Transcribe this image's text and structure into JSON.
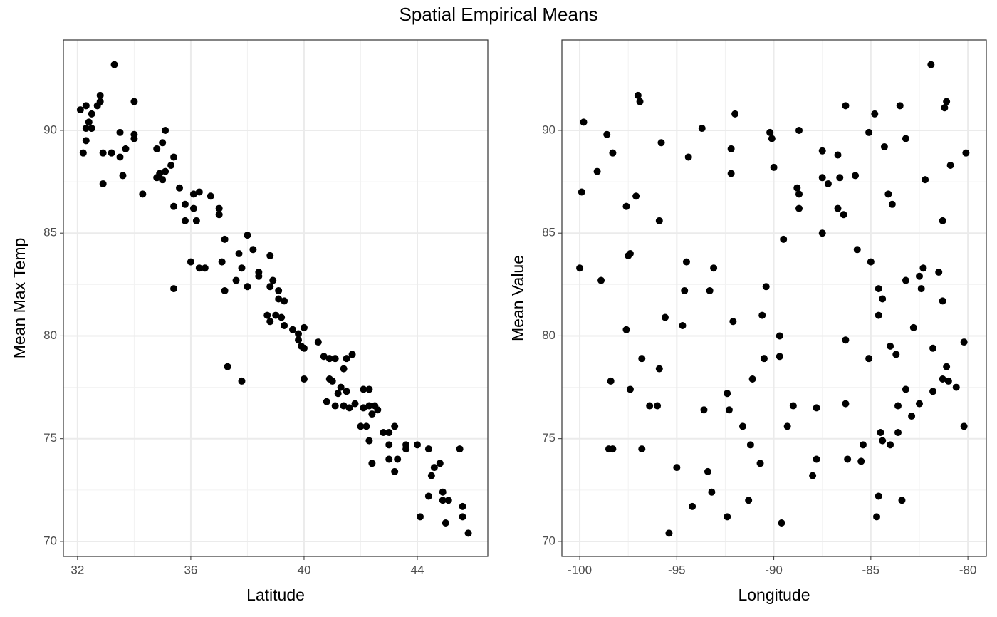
{
  "title": "Spatial Empirical Means",
  "chart_data": [
    {
      "type": "scatter",
      "x_label": "Latitude",
      "y_label": "Mean Max Temp",
      "color": "#000000",
      "grid": true,
      "xlim": [
        31.5,
        46.49
      ],
      "ylim": [
        69.27,
        94.4
      ],
      "xticks": [
        32,
        36,
        40,
        44
      ],
      "yticks": [
        70,
        75,
        80,
        85,
        90
      ],
      "x": [
        32.1,
        32.3,
        32.2,
        32.3,
        32.3,
        32.4,
        32.5,
        32.5,
        32.7,
        32.8,
        32.8,
        32.9,
        32.9,
        33.2,
        33.3,
        33.5,
        33.5,
        33.6,
        33.7,
        34.0,
        34.0,
        34.0,
        34.3,
        34.8,
        34.8,
        34.9,
        35.0,
        35.0,
        35.1,
        35.1,
        35.3,
        35.4,
        35.4,
        35.4,
        35.6,
        35.8,
        35.8,
        36.0,
        36.1,
        36.1,
        36.2,
        36.3,
        36.3,
        36.5,
        36.7,
        37.0,
        37.0,
        37.1,
        37.2,
        37.2,
        37.3,
        37.6,
        37.7,
        37.8,
        37.8,
        38.0,
        38.0,
        38.2,
        38.4,
        38.4,
        38.7,
        38.8,
        38.8,
        38.8,
        38.9,
        39.0,
        39.1,
        39.1,
        39.2,
        39.3,
        39.3,
        39.6,
        39.8,
        39.8,
        39.9,
        40.0,
        40.0,
        40.0,
        40.5,
        40.7,
        40.8,
        40.9,
        40.9,
        41.0,
        41.1,
        41.1,
        41.2,
        41.3,
        41.4,
        41.4,
        41.5,
        41.5,
        41.6,
        41.7,
        41.8,
        42.0,
        42.1,
        42.1,
        42.2,
        42.3,
        42.3,
        42.3,
        42.4,
        42.4,
        42.5,
        42.6,
        42.8,
        43.0,
        43.0,
        43.0,
        43.2,
        43.2,
        43.3,
        43.6,
        43.6,
        44.0,
        44.1,
        44.4,
        44.4,
        44.5,
        44.6,
        44.8,
        44.9,
        44.9,
        45.0,
        45.1,
        45.5,
        45.6,
        45.6,
        45.8
      ],
      "values": [
        91.0,
        91.2,
        88.9,
        89.5,
        90.1,
        90.4,
        90.8,
        90.1,
        91.2,
        91.7,
        91.4,
        88.9,
        87.4,
        88.9,
        93.2,
        89.9,
        88.7,
        87.8,
        89.1,
        91.4,
        89.8,
        89.6,
        86.9,
        89.1,
        87.7,
        87.9,
        89.4,
        87.6,
        88.0,
        90.0,
        88.3,
        88.7,
        86.3,
        82.3,
        87.2,
        85.6,
        86.4,
        83.6,
        86.9,
        86.2,
        85.6,
        83.3,
        87.0,
        83.3,
        86.8,
        85.9,
        86.2,
        83.6,
        84.7,
        82.2,
        78.5,
        82.7,
        84.0,
        83.3,
        77.8,
        84.9,
        82.4,
        84.2,
        83.1,
        82.9,
        81.0,
        83.9,
        82.4,
        80.7,
        82.7,
        81.0,
        82.2,
        81.8,
        80.9,
        80.5,
        81.7,
        80.3,
        80.1,
        79.8,
        79.5,
        80.4,
        79.4,
        77.9,
        79.7,
        79.0,
        76.8,
        78.9,
        77.9,
        77.8,
        76.6,
        78.9,
        77.2,
        77.5,
        78.4,
        76.6,
        77.3,
        78.9,
        76.5,
        79.1,
        76.7,
        75.6,
        77.4,
        76.5,
        75.6,
        74.9,
        77.4,
        76.6,
        76.2,
        73.8,
        76.6,
        76.4,
        75.3,
        74.7,
        74.0,
        75.3,
        75.6,
        73.4,
        74.0,
        74.7,
        74.5,
        74.7,
        71.2,
        74.5,
        72.2,
        73.2,
        73.6,
        73.8,
        72.4,
        72.0,
        70.9,
        72.0,
        74.5,
        71.7,
        71.2,
        70.4
      ]
    },
    {
      "type": "scatter",
      "x_label": "Longitude",
      "y_label": "Mean Value",
      "color": "#000000",
      "grid": true,
      "xlim": [
        -100.92,
        -79.05
      ],
      "ylim": [
        69.27,
        94.4
      ],
      "xticks": [
        -100,
        -95,
        -90,
        -85,
        -80
      ],
      "yticks": [
        70,
        75,
        80,
        85,
        90
      ],
      "x": [
        -100.0,
        -99.9,
        -99.8,
        -99.1,
        -98.9,
        -98.6,
        -98.5,
        -98.4,
        -98.3,
        -98.3,
        -97.6,
        -97.6,
        -97.5,
        -97.4,
        -97.4,
        -97.1,
        -97.0,
        -96.9,
        -96.8,
        -96.8,
        -96.4,
        -96.0,
        -95.9,
        -95.9,
        -95.8,
        -95.6,
        -95.4,
        -95.0,
        -94.7,
        -94.6,
        -94.5,
        -94.4,
        -94.2,
        -93.7,
        -93.6,
        -93.4,
        -93.3,
        -93.2,
        -93.1,
        -92.4,
        -92.4,
        -92.3,
        -92.2,
        -92.2,
        -92.1,
        -92.0,
        -91.6,
        -91.3,
        -91.2,
        -91.1,
        -90.7,
        -90.6,
        -90.5,
        -90.4,
        -90.2,
        -90.1,
        -90.0,
        -89.7,
        -89.7,
        -89.6,
        -89.5,
        -89.3,
        -89.0,
        -88.8,
        -88.7,
        -88.7,
        -88.7,
        -88.0,
        -87.8,
        -87.8,
        -87.5,
        -87.5,
        -87.5,
        -87.2,
        -86.7,
        -86.7,
        -86.6,
        -86.4,
        -86.3,
        -86.3,
        -86.3,
        -86.2,
        -85.8,
        -85.7,
        -85.5,
        -85.4,
        -85.1,
        -85.1,
        -85.0,
        -84.8,
        -84.7,
        -84.6,
        -84.6,
        -84.6,
        -84.5,
        -84.4,
        -84.4,
        -84.3,
        -84.1,
        -84.0,
        -84.0,
        -83.9,
        -83.7,
        -83.6,
        -83.6,
        -83.5,
        -83.4,
        -83.2,
        -83.2,
        -83.2,
        -82.9,
        -82.8,
        -82.5,
        -82.5,
        -82.4,
        -82.3,
        -82.2,
        -81.9,
        -81.8,
        -81.8,
        -81.5,
        -81.3,
        -81.3,
        -81.3,
        -81.2,
        -81.1,
        -81.1,
        -81.0,
        -80.9,
        -80.6,
        -80.2,
        -80.2,
        -80.1
      ],
      "values": [
        83.3,
        87.0,
        90.4,
        88.0,
        82.7,
        89.8,
        74.5,
        77.8,
        88.9,
        74.5,
        86.3,
        80.3,
        83.9,
        84.0,
        77.4,
        86.8,
        91.7,
        91.4,
        78.9,
        74.5,
        76.6,
        76.6,
        85.6,
        78.4,
        89.4,
        80.9,
        70.4,
        73.6,
        80.5,
        82.2,
        83.6,
        88.7,
        71.7,
        90.1,
        76.4,
        73.4,
        82.2,
        72.4,
        83.3,
        77.2,
        71.2,
        76.4,
        87.9,
        89.1,
        80.7,
        90.8,
        75.6,
        72.0,
        74.7,
        77.9,
        73.8,
        81.0,
        78.9,
        82.4,
        89.9,
        89.6,
        88.2,
        80.0,
        79.0,
        70.9,
        84.7,
        75.6,
        76.6,
        87.2,
        86.9,
        86.2,
        90.0,
        73.2,
        74.0,
        76.5,
        85.0,
        87.7,
        89.0,
        87.4,
        86.2,
        88.8,
        87.7,
        85.9,
        91.2,
        79.8,
        76.7,
        74.0,
        87.8,
        84.2,
        73.9,
        74.7,
        89.9,
        78.9,
        83.6,
        90.8,
        71.2,
        72.2,
        81.0,
        82.3,
        75.3,
        74.9,
        81.8,
        89.2,
        86.9,
        74.7,
        79.5,
        86.4,
        79.1,
        75.3,
        76.6,
        91.2,
        72.0,
        89.6,
        82.7,
        77.4,
        76.1,
        80.4,
        82.9,
        76.7,
        82.3,
        83.3,
        87.6,
        93.2,
        79.4,
        77.3,
        83.1,
        77.9,
        81.7,
        85.6,
        91.1,
        78.5,
        91.4,
        77.8,
        88.3,
        77.5,
        79.7,
        75.6,
        88.9
      ]
    }
  ]
}
